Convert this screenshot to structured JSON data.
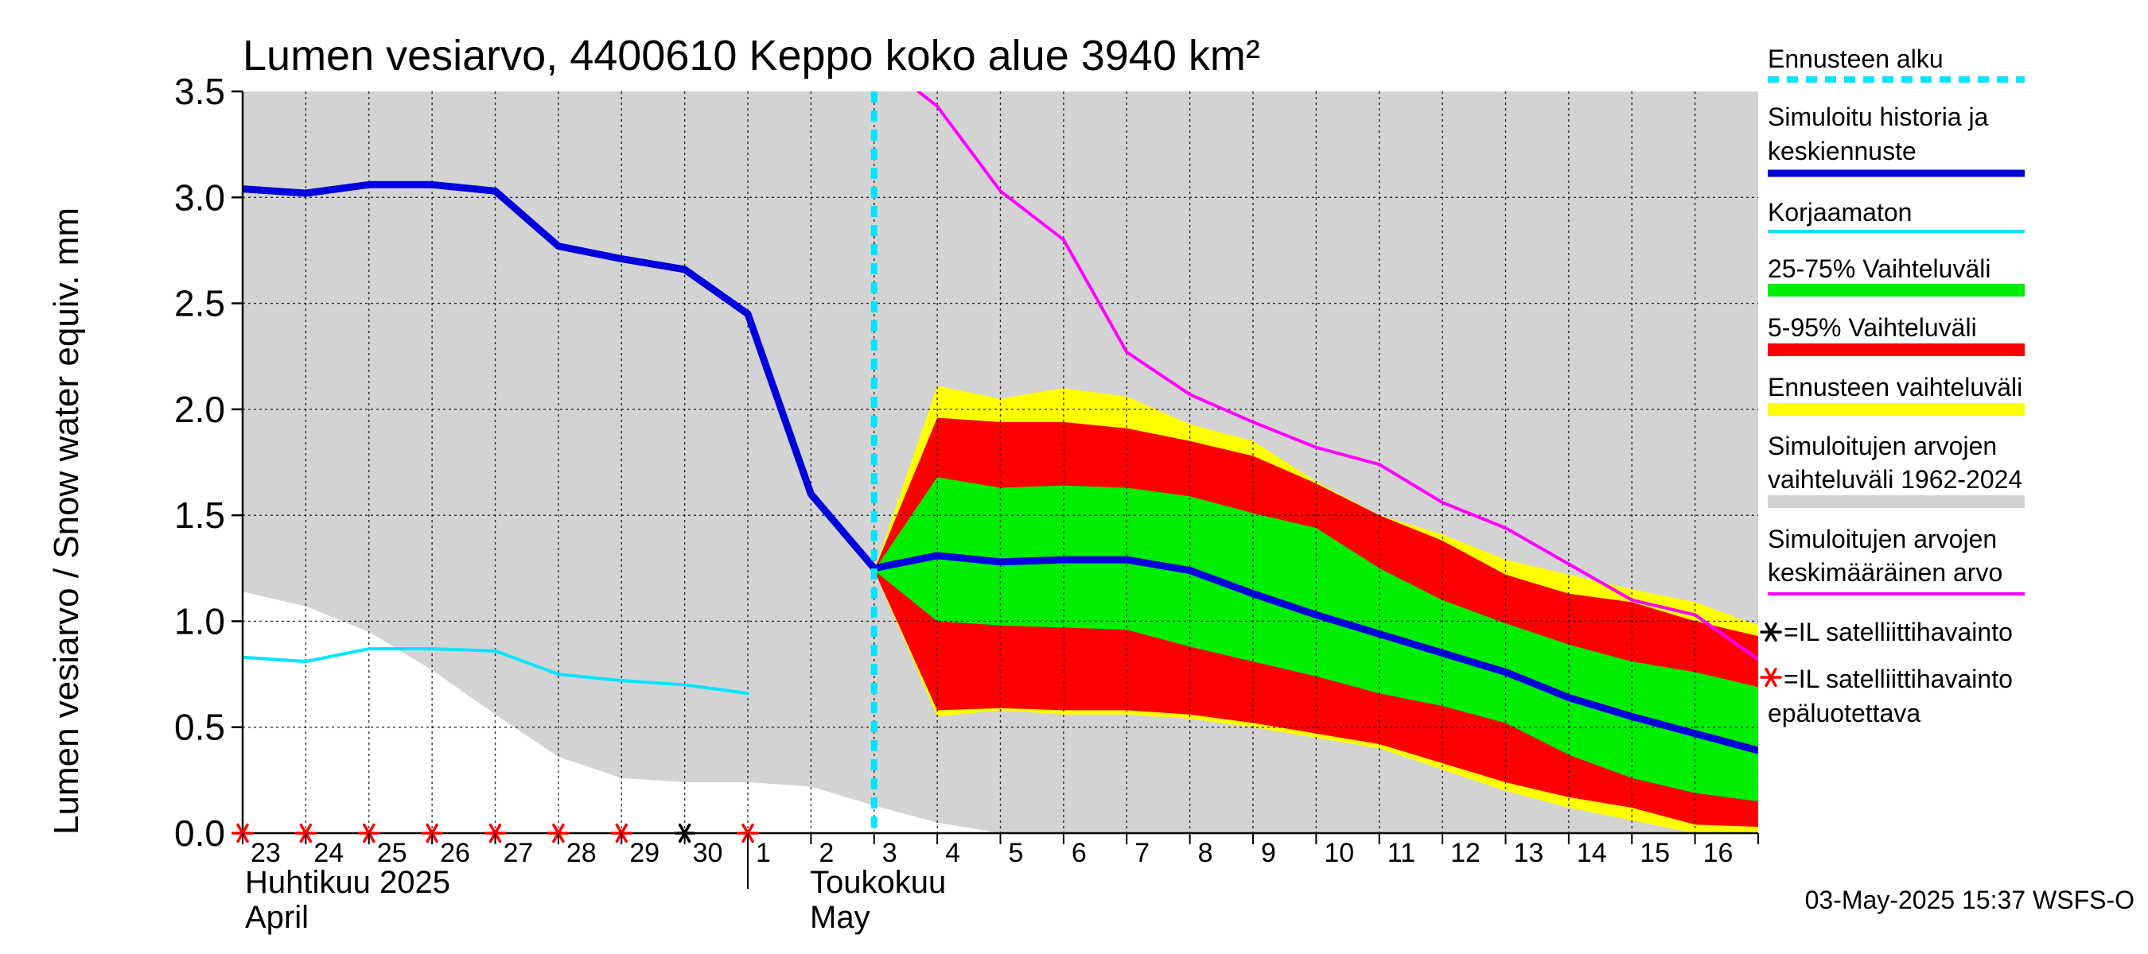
{
  "chart_data": {
    "type": "area",
    "title": "Lumen vesiarvo, 4400610 Keppo koko alue 3940 km²",
    "ylabel": "Lumen vesiarvo / Snow water equiv.    mm",
    "ylim": [
      0,
      3.5
    ],
    "yticks": [
      "0.0",
      "0.5",
      "1.0",
      "1.5",
      "2.0",
      "2.5",
      "3.0",
      "3.5"
    ],
    "x_day_labels": [
      "23",
      "24",
      "25",
      "26",
      "27",
      "28",
      "29",
      "30",
      "1",
      "2",
      "3",
      "4",
      "5",
      "6",
      "7",
      "8",
      "9",
      "10",
      "11",
      "12",
      "13",
      "14",
      "15",
      "16"
    ],
    "month_labels": {
      "april_fi": "Huhtikuu  2025",
      "april_en": "April",
      "may_fi": "Toukokuu",
      "may_en": "May"
    },
    "x_range_days": [
      0,
      24
    ],
    "forecast_start_day": 10.0,
    "series": [
      {
        "name": "Simuloitujen arvojen vaihteluväli 1962-2024",
        "color": "#d3d3d3",
        "x": [
          0,
          1,
          2,
          3,
          4,
          5,
          6,
          7,
          8,
          9,
          10,
          11,
          12,
          13,
          14,
          15,
          16,
          17,
          18,
          19,
          20,
          21,
          22,
          23,
          24
        ],
        "lower": [
          1.14,
          1.07,
          0.95,
          0.77,
          0.56,
          0.36,
          0.26,
          0.24,
          0.24,
          0.22,
          0.13,
          0.05,
          0.0,
          0.0,
          0.0,
          0.0,
          0.0,
          0.0,
          0.0,
          0.0,
          0.0,
          0.0,
          0.0,
          0.0,
          0.0
        ],
        "upper": [
          3.5,
          3.5,
          3.5,
          3.5,
          3.5,
          3.5,
          3.5,
          3.5,
          3.5,
          3.5,
          3.5,
          3.5,
          3.5,
          3.5,
          3.5,
          3.5,
          3.5,
          3.5,
          3.5,
          3.5,
          3.5,
          3.5,
          3.5,
          3.5,
          3.5
        ]
      },
      {
        "name": "Ennusteen vaihteluväli",
        "color": "#ffff00",
        "x": [
          10,
          11,
          12,
          13,
          14,
          15,
          16,
          17,
          18,
          19,
          20,
          21,
          22,
          23,
          24
        ],
        "lower": [
          1.24,
          0.55,
          0.58,
          0.56,
          0.56,
          0.54,
          0.5,
          0.45,
          0.4,
          0.3,
          0.2,
          0.12,
          0.06,
          0.0,
          0.0
        ],
        "upper": [
          1.24,
          2.11,
          2.05,
          2.1,
          2.06,
          1.93,
          1.85,
          1.66,
          1.5,
          1.41,
          1.29,
          1.22,
          1.15,
          1.09,
          0.98
        ]
      },
      {
        "name": "5-95% Vaihteluväli",
        "color": "#ff0000",
        "x": [
          10,
          11,
          12,
          13,
          14,
          15,
          16,
          17,
          18,
          19,
          20,
          21,
          22,
          23,
          24
        ],
        "lower": [
          1.24,
          0.58,
          0.59,
          0.58,
          0.58,
          0.56,
          0.52,
          0.47,
          0.42,
          0.33,
          0.24,
          0.17,
          0.12,
          0.04,
          0.03
        ],
        "upper": [
          1.24,
          1.96,
          1.94,
          1.94,
          1.91,
          1.85,
          1.78,
          1.65,
          1.5,
          1.38,
          1.22,
          1.13,
          1.09,
          1.0,
          0.93
        ]
      },
      {
        "name": "25-75% Vaihteluväli",
        "color": "#00ee00",
        "x": [
          10,
          11,
          12,
          13,
          14,
          15,
          16,
          17,
          18,
          19,
          20,
          21,
          22,
          23,
          24
        ],
        "lower": [
          1.24,
          1.0,
          0.98,
          0.97,
          0.96,
          0.88,
          0.81,
          0.74,
          0.66,
          0.6,
          0.52,
          0.37,
          0.26,
          0.19,
          0.15
        ],
        "upper": [
          1.24,
          1.68,
          1.63,
          1.64,
          1.63,
          1.59,
          1.51,
          1.44,
          1.25,
          1.1,
          0.99,
          0.89,
          0.81,
          0.76,
          0.69
        ]
      },
      {
        "name": "Simuloitujen arvojen keskimääräinen arvo",
        "color": "#ff00ff",
        "x": [
          10.7,
          11,
          12,
          13,
          14,
          15,
          16,
          17,
          18,
          19,
          20,
          21,
          22,
          23,
          24
        ],
        "values": [
          3.5,
          3.43,
          3.03,
          2.8,
          2.27,
          2.07,
          1.94,
          1.82,
          1.74,
          1.56,
          1.44,
          1.27,
          1.1,
          1.03,
          0.82
        ]
      },
      {
        "name": "Korjaamaton",
        "color": "#00e5ff",
        "x": [
          0,
          1,
          2,
          3,
          4,
          5,
          6,
          7,
          8
        ],
        "values": [
          0.83,
          0.81,
          0.87,
          0.87,
          0.86,
          0.75,
          0.72,
          0.7,
          0.66
        ]
      },
      {
        "name": "Simuloitu historia ja keskiennuste",
        "color": "#0000dd",
        "x": [
          0,
          1,
          2,
          3,
          4,
          5,
          6,
          7,
          8,
          9,
          10,
          11,
          12,
          13,
          14,
          15,
          16,
          17,
          18,
          19,
          20,
          21,
          22,
          23,
          24
        ],
        "values": [
          3.04,
          3.02,
          3.06,
          3.06,
          3.03,
          2.77,
          2.71,
          2.66,
          2.45,
          1.6,
          1.25,
          1.31,
          1.28,
          1.29,
          1.29,
          1.24,
          1.13,
          1.03,
          0.94,
          0.85,
          0.76,
          0.64,
          0.55,
          0.47,
          0.39
        ]
      }
    ],
    "satellite_markers": [
      {
        "x": 0,
        "reliable": false
      },
      {
        "x": 1,
        "reliable": false
      },
      {
        "x": 2,
        "reliable": false
      },
      {
        "x": 3,
        "reliable": false
      },
      {
        "x": 4,
        "reliable": false
      },
      {
        "x": 5,
        "reliable": false
      },
      {
        "x": 6,
        "reliable": false
      },
      {
        "x": 7,
        "reliable": true
      },
      {
        "x": 8,
        "reliable": false
      }
    ],
    "legend": [
      {
        "label": "Ennusteen alku",
        "color": "#00e5ff",
        "style": "dashed"
      },
      {
        "label": "Simuloitu historia ja\nkeskiennuste",
        "color": "#0000dd",
        "style": "line"
      },
      {
        "label": "Korjaamaton",
        "color": "#00e5ff",
        "style": "thin"
      },
      {
        "label": "25-75% Vaihteluväli",
        "color": "#00ee00",
        "style": "band"
      },
      {
        "label": "5-95% Vaihteluväli",
        "color": "#ff0000",
        "style": "band"
      },
      {
        "label": "Ennusteen vaihteluväli",
        "color": "#ffff00",
        "style": "band"
      },
      {
        "label": "Simuloitujen arvojen\nvaihteluväli 1962-2024",
        "color": "#d3d3d3",
        "style": "band"
      },
      {
        "label": "Simuloitujen arvojen\nkeskimääräinen arvo",
        "color": "#ff00ff",
        "style": "thin"
      },
      {
        "label": "=IL satelliittihavainto",
        "color": "#000000",
        "style": "marker"
      },
      {
        "label": "=IL satelliittihavainto\nepäluotettava",
        "color": "#ff0000",
        "style": "marker"
      }
    ],
    "timestamp": "03-May-2025 15:37 WSFS-O"
  }
}
